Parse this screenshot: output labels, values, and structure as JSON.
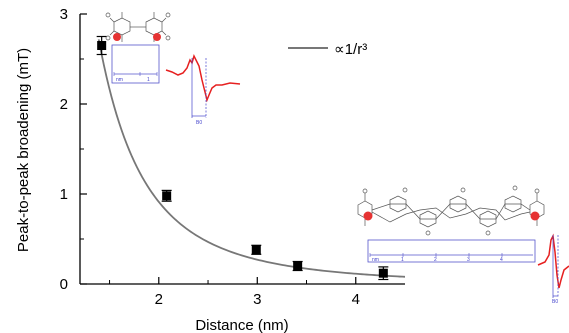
{
  "chart_data": {
    "type": "scatter",
    "xlabel": "Distance (nm)",
    "ylabel": "Peak-to-peak broadening (mT)",
    "xlim": [
      1.2,
      4.5
    ],
    "ylim": [
      0,
      3
    ],
    "xticks": [
      2,
      3,
      4
    ],
    "yticks": [
      0,
      1,
      2,
      3
    ],
    "series": [
      {
        "type": "scatter",
        "x": [
          1.42,
          2.08,
          2.99,
          3.41,
          4.28
        ],
        "y": [
          2.65,
          0.98,
          0.38,
          0.2,
          0.12
        ],
        "yerr": [
          0.1,
          0.06,
          0.05,
          0.05,
          0.07
        ],
        "color": "#000000"
      },
      {
        "name": "∝1/r³",
        "type": "line",
        "model": "inverse_cube",
        "k": 7.3,
        "x_range": [
          1.39,
          4.5
        ],
        "color": "#777777"
      }
    ],
    "legend": "top-right"
  },
  "insets": {
    "short": {
      "scale_label": "nm",
      "scale_ticks": [
        "1"
      ],
      "field_label": "B0"
    },
    "long": {
      "scale_label": "nm",
      "scale_ticks": [
        "1",
        "2",
        "3",
        "4"
      ],
      "field_label": "B0"
    }
  }
}
